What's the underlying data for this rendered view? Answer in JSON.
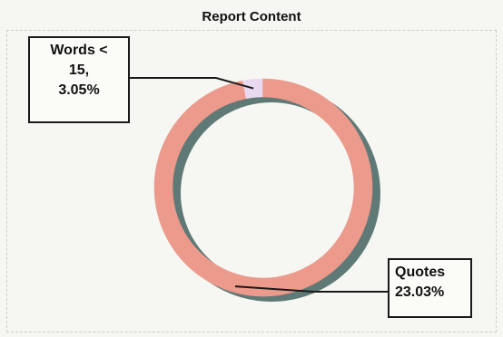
{
  "chart_data": {
    "type": "pie",
    "title": "Report Content",
    "segments": [
      {
        "label": "Words < 15,",
        "value": 3.05,
        "color": "#e9d9ef"
      },
      {
        "label": "Quotes",
        "value": 23.03,
        "color": "#ec9a8c"
      },
      {
        "label": "",
        "value": 73.92,
        "color": "#ec9a8c"
      }
    ],
    "callouts": [
      {
        "lines": [
          "Words <",
          "15,",
          "3.05%"
        ]
      },
      {
        "lines": [
          "Quotes",
          "23.03%"
        ]
      }
    ],
    "style": "donut",
    "shadow_color": "#5f7a76"
  }
}
